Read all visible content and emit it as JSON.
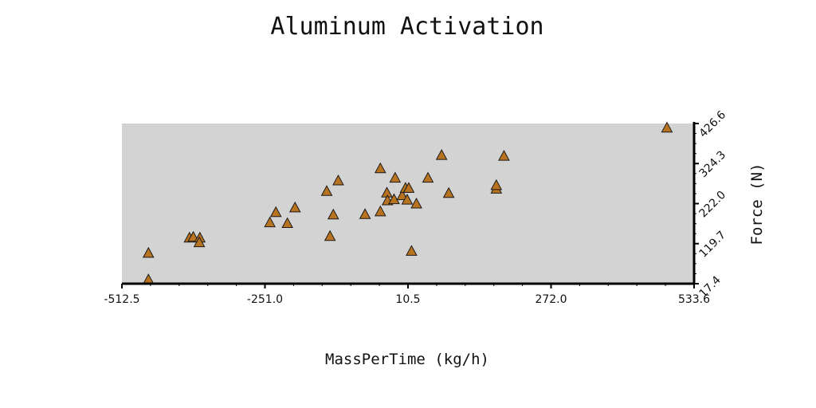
{
  "chart_data": {
    "type": "scatter",
    "title": "Aluminum Activation",
    "xlabel": "MassPerTime (kg/h)",
    "ylabel": "Force (N)",
    "xlim": [
      -512.5,
      533.6
    ],
    "ylim": [
      17.4,
      426.6
    ],
    "x_ticks": [
      "-512.5",
      "-251.0",
      "10.5",
      "272.0",
      "533.6"
    ],
    "y_ticks": [
      "17.4",
      "119.7",
      "222.0",
      "324.3",
      "426.6"
    ],
    "grid": false,
    "background": "#d3d3d3",
    "marker": "triangle",
    "marker_color": "#b87320",
    "points": [
      {
        "x": -464,
        "y": 27
      },
      {
        "x": -464,
        "y": 95
      },
      {
        "x": -389,
        "y": 134
      },
      {
        "x": -382,
        "y": 136
      },
      {
        "x": -370,
        "y": 134
      },
      {
        "x": -371,
        "y": 122
      },
      {
        "x": -242,
        "y": 173
      },
      {
        "x": -231,
        "y": 199
      },
      {
        "x": -210,
        "y": 171
      },
      {
        "x": -196,
        "y": 211
      },
      {
        "x": -138,
        "y": 253
      },
      {
        "x": -132,
        "y": 138
      },
      {
        "x": -126,
        "y": 193
      },
      {
        "x": -117,
        "y": 280
      },
      {
        "x": -68,
        "y": 194
      },
      {
        "x": -40,
        "y": 201
      },
      {
        "x": -40,
        "y": 311
      },
      {
        "x": -28,
        "y": 249
      },
      {
        "x": -27,
        "y": 229
      },
      {
        "x": -15,
        "y": 232
      },
      {
        "x": -13,
        "y": 287
      },
      {
        "x": 0,
        "y": 242
      },
      {
        "x": 6,
        "y": 261
      },
      {
        "x": 9,
        "y": 231
      },
      {
        "x": 12,
        "y": 261
      },
      {
        "x": 17,
        "y": 100
      },
      {
        "x": 26,
        "y": 221
      },
      {
        "x": 47,
        "y": 287
      },
      {
        "x": 72,
        "y": 345
      },
      {
        "x": 85,
        "y": 248
      },
      {
        "x": 172,
        "y": 259
      },
      {
        "x": 172,
        "y": 268
      },
      {
        "x": 186,
        "y": 343
      },
      {
        "x": 484,
        "y": 415
      }
    ]
  }
}
